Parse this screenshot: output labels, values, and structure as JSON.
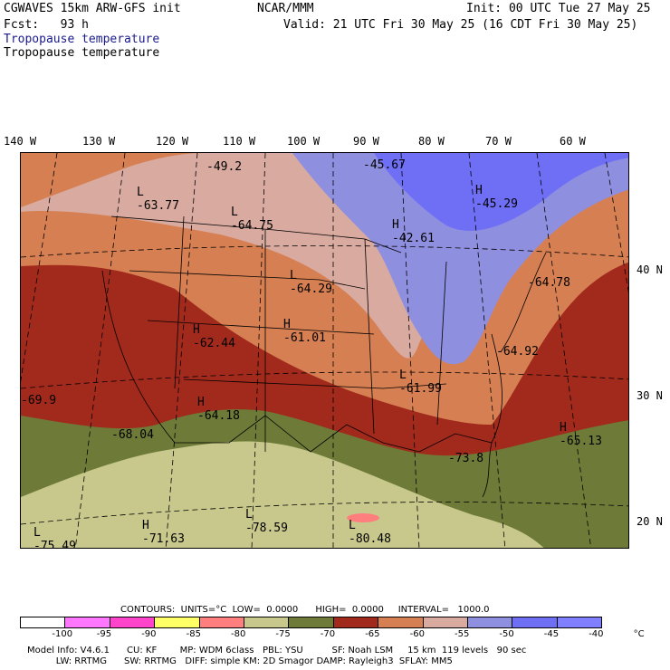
{
  "header": {
    "model_line": "CGWAVES 15km ARW-GFS init",
    "org": "NCAR/MMM",
    "init": "Init: 00 UTC Tue 27 May 25",
    "fcst": "Fcst:   93 h",
    "valid": "Valid: 21 UTC Fri 30 May 25 (16 CDT Fri 30 May 25)",
    "field_blue": "Tropopause temperature",
    "field_black": "Tropopause temperature"
  },
  "longitude_labels": [
    "140 W",
    "130 W",
    "120 W",
    "110 W",
    "100 W",
    "90 W",
    "80 W",
    "70 W",
    "60 W"
  ],
  "latitude_labels": [
    "40 N",
    "30 N",
    "20 N"
  ],
  "map_labels": [
    {
      "letter": "L",
      "value": "-63.77"
    },
    {
      "letter": "",
      "value": "-49.2"
    },
    {
      "letter": "L",
      "value": "-64.75"
    },
    {
      "letter": "",
      "value": "-45.67"
    },
    {
      "letter": "H",
      "value": "-45.29"
    },
    {
      "letter": "H",
      "value": "-42.61"
    },
    {
      "letter": "L",
      "value": "-64.29"
    },
    {
      "letter": "",
      "value": "-64.78"
    },
    {
      "letter": "H",
      "value": "-62.44"
    },
    {
      "letter": "H",
      "value": "-61.01"
    },
    {
      "letter": "",
      "value": "-64.92"
    },
    {
      "letter": "L",
      "value": "-61.99"
    },
    {
      "letter": "",
      "value": "-69.9"
    },
    {
      "letter": "H",
      "value": "-64.18"
    },
    {
      "letter": "H",
      "value": "-65.13"
    },
    {
      "letter": "",
      "value": "-68.04"
    },
    {
      "letter": "",
      "value": "-73.8"
    },
    {
      "letter": "L",
      "value": "-78.59"
    },
    {
      "letter": "L",
      "value": "-75.49"
    },
    {
      "letter": "H",
      "value": "-71.63"
    },
    {
      "letter": "L",
      "value": "-80.48"
    }
  ],
  "contours": {
    "label": "CONTOURS:  UNITS=°C  LOW=  0.0000      HIGH=  0.0000     INTERVAL=   1000.0"
  },
  "colorbar": {
    "colors": [
      "#ffffff",
      "#ff77ff",
      "#ff44cc",
      "#ffff66",
      "#ff7f7f",
      "#c8c88c",
      "#6e7a37",
      "#a12a1c",
      "#d67f52",
      "#d9aaa0",
      "#8f8fe0",
      "#6f6ff5",
      "#7f7fff"
    ],
    "ticks": [
      "-100",
      "-95",
      "-90",
      "-85",
      "-80",
      "-75",
      "-70",
      "-65",
      "-60",
      "-55",
      "-50",
      "-45",
      "-40",
      "°C"
    ]
  },
  "footer": {
    "line1": "Model Info: V4.6.1      CU: KF        MP: WDM 6class   PBL: YSU          SF: Noah LSM     15 km  119 levels   90 sec",
    "line2": "          LW: RRTMG      SW: RRTMG   DIFF: simple KM: 2D Smagor DAMP: Rayleigh3  SFLAY: MM5"
  }
}
